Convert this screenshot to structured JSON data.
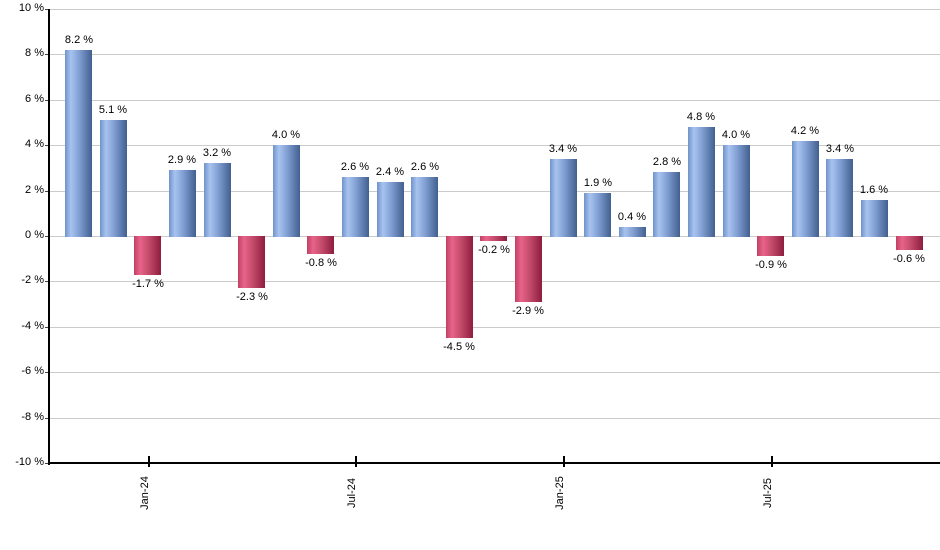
{
  "chart_data": {
    "type": "bar",
    "title": "",
    "xlabel": "",
    "ylabel": "",
    "ylim": [
      -10,
      10
    ],
    "grid": true,
    "legend": "none",
    "bar_count": 25,
    "values": [
      8.2,
      5.1,
      -1.7,
      2.9,
      3.2,
      -2.3,
      4.0,
      -0.8,
      2.6,
      2.4,
      2.6,
      -4.5,
      -0.2,
      -2.9,
      3.4,
      1.9,
      0.4,
      2.8,
      4.8,
      4.0,
      -0.9,
      4.2,
      3.4,
      1.6,
      -0.6
    ],
    "bar_labels": [
      "8.2 %",
      "5.1 %",
      "-1.7 %",
      "2.9 %",
      "3.2 %",
      "-2.3 %",
      "4.0 %",
      "-0.8 %",
      "2.6 %",
      "2.4 %",
      "2.6 %",
      "-4.5 %",
      "-0.2 %",
      "-2.9 %",
      "3.4 %",
      "1.9 %",
      "0.4 %",
      "2.8 %",
      "4.8 %",
      "4.0 %",
      "-0.9 %",
      "4.2 %",
      "3.4 %",
      "1.6 %",
      "-0.6 %"
    ],
    "y_axis": {
      "ticks": [
        {
          "value": 10,
          "label": "10 %"
        },
        {
          "value": 8,
          "label": "8 %"
        },
        {
          "value": 6,
          "label": "6 %"
        },
        {
          "value": 4,
          "label": "4 %"
        },
        {
          "value": 2,
          "label": "2 %"
        },
        {
          "value": 0,
          "label": "0 %"
        },
        {
          "value": -2,
          "label": "-2 %"
        },
        {
          "value": -4,
          "label": "-4 %"
        },
        {
          "value": -6,
          "label": "-6 %"
        },
        {
          "value": -8,
          "label": "-8 %"
        },
        {
          "value": -10,
          "label": "-10 %"
        }
      ]
    },
    "x_axis": {
      "ticks": [
        {
          "bar_index": 2,
          "label": "Jan-24"
        },
        {
          "bar_index": 8,
          "label": "Jul-24"
        },
        {
          "bar_index": 14,
          "label": "Jan-25"
        },
        {
          "bar_index": 20,
          "label": "Jul-25"
        }
      ]
    },
    "colors": {
      "positive_gradient_stops": [
        "#6f93cb",
        "#a9c3ef",
        "#84a2d6",
        "#41608f"
      ],
      "negative_gradient_stops": [
        "#c04064",
        "#e8638a",
        "#c94f70",
        "#8e1d3e"
      ],
      "gridline": "#cbcbcb",
      "axis": "#000000",
      "text": "#000000",
      "background": "#ffffff"
    }
  }
}
